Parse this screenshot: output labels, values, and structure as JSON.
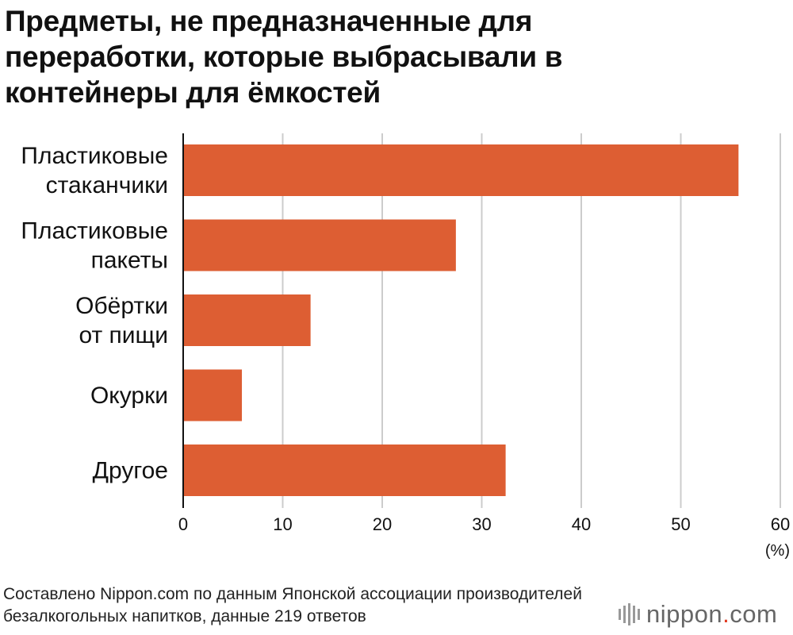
{
  "title": "Предметы, не предназначенные для переработки, которые выбрасывали в контейнеры для ёмкостей",
  "source": "Составлено Nippon.com по данным Японской ассоциации производителей безалкогольных напитков, данные 219 ответов",
  "logo": {
    "name": "nippon",
    "dot": ".",
    "tld": "com"
  },
  "chart_data": {
    "type": "bar",
    "orientation": "horizontal",
    "categories": [
      [
        "Пластиковые",
        "стаканчики"
      ],
      [
        "Пластиковые",
        "пакеты"
      ],
      [
        "Обёртки",
        "от пищи"
      ],
      [
        "Окурки"
      ],
      [
        "Другое"
      ]
    ],
    "values": [
      55.8,
      27.4,
      12.8,
      5.9,
      32.4
    ],
    "xlim": [
      0,
      60
    ],
    "xticks": [
      0,
      10,
      20,
      30,
      40,
      50,
      60
    ],
    "xunit": "(%)",
    "grid": true,
    "bar_color": "#dd5e33",
    "grid_color": "#cccccc"
  }
}
